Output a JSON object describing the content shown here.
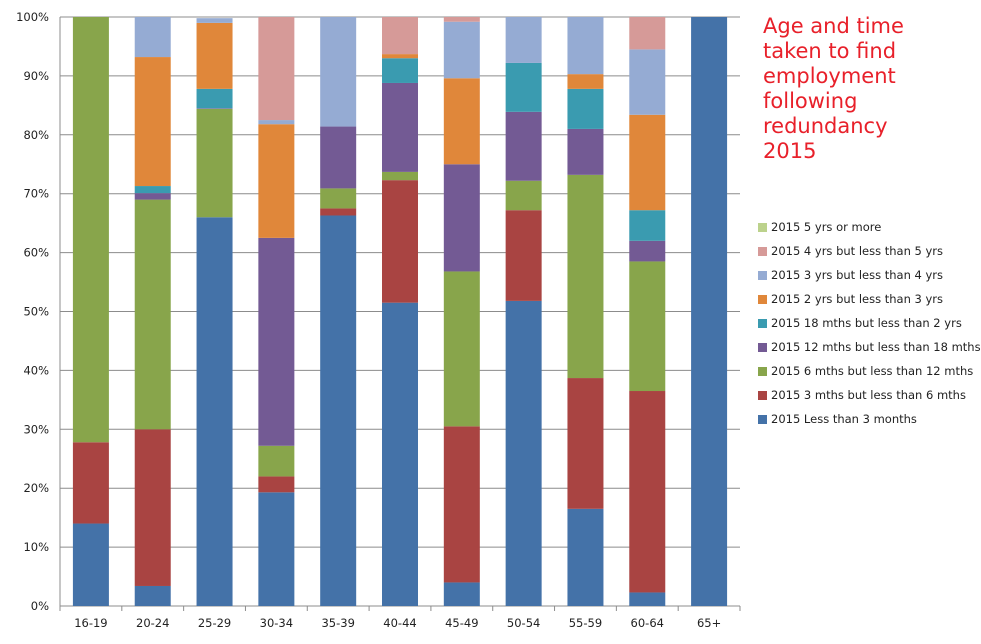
{
  "chart_data": {
    "type": "bar",
    "stacked": true,
    "title_lines": [
      "Age and time",
      "taken to find",
      "employment",
      "following",
      "redundancy",
      "2015"
    ],
    "title": "Age and time taken to find employment following redundancy 2015",
    "xlabel": "",
    "ylabel": "",
    "ylim": [
      0,
      100
    ],
    "y_ticks": [
      "0%",
      "10%",
      "20%",
      "30%",
      "40%",
      "50%",
      "60%",
      "70%",
      "80%",
      "90%",
      "100%"
    ],
    "grid": true,
    "legend_position": "right",
    "categories": [
      "16-19",
      "20-24",
      "25-29",
      "30-34",
      "35-39",
      "40-44",
      "45-49",
      "50-54",
      "55-59",
      "60-64",
      "65+"
    ],
    "series": [
      {
        "name": "2015 Less than 3 months",
        "color": "#4472a8",
        "values": [
          14,
          3.4,
          66,
          19.3,
          66.3,
          51.5,
          4,
          51.8,
          16.5,
          2.3,
          100
        ]
      },
      {
        "name": "2015 3 mths but less than 6 mths",
        "color": "#a94442",
        "values": [
          13.8,
          26.6,
          0,
          2.7,
          1.2,
          20.8,
          26.5,
          15.4,
          22.2,
          34.2,
          0
        ]
      },
      {
        "name": "2015 6 mths but less than 12 mths",
        "color": "#88a54b",
        "values": [
          72.2,
          39,
          18.4,
          5.2,
          3.4,
          1.4,
          26.3,
          5,
          34.5,
          22,
          0
        ]
      },
      {
        "name": "2015 12 mths but less than 18 mths",
        "color": "#735a94",
        "values": [
          0,
          1.1,
          0.1,
          35.3,
          10.5,
          15.1,
          18.2,
          11.7,
          7.8,
          3.5,
          0
        ]
      },
      {
        "name": "2015 18 mths but less than 2 yrs",
        "color": "#3a9bb0",
        "values": [
          0,
          1.2,
          3.3,
          0,
          0,
          4.2,
          0,
          8.3,
          6.8,
          5.2,
          0
        ]
      },
      {
        "name": "2015 2 yrs but less than 3 yrs",
        "color": "#e0873a",
        "values": [
          0,
          21.9,
          11.2,
          19.3,
          0,
          0.7,
          14.6,
          0,
          2.5,
          16.2,
          0
        ]
      },
      {
        "name": "2015 3 yrs but less than 4 yrs",
        "color": "#95abd3",
        "values": [
          0,
          6.8,
          0.8,
          0.7,
          18.6,
          0,
          9.6,
          7.8,
          9.7,
          11.1,
          0
        ]
      },
      {
        "name": "2015 4 yrs but less than 5 yrs",
        "color": "#d69a98",
        "values": [
          0,
          0,
          0,
          17.5,
          0,
          6.3,
          0.8,
          0,
          0,
          5.5,
          0
        ]
      },
      {
        "name": "2015 5 yrs or more",
        "color": "#bcd28c",
        "values": [
          0,
          0,
          0,
          0,
          0,
          0,
          0,
          0,
          0,
          0,
          0
        ]
      }
    ]
  }
}
